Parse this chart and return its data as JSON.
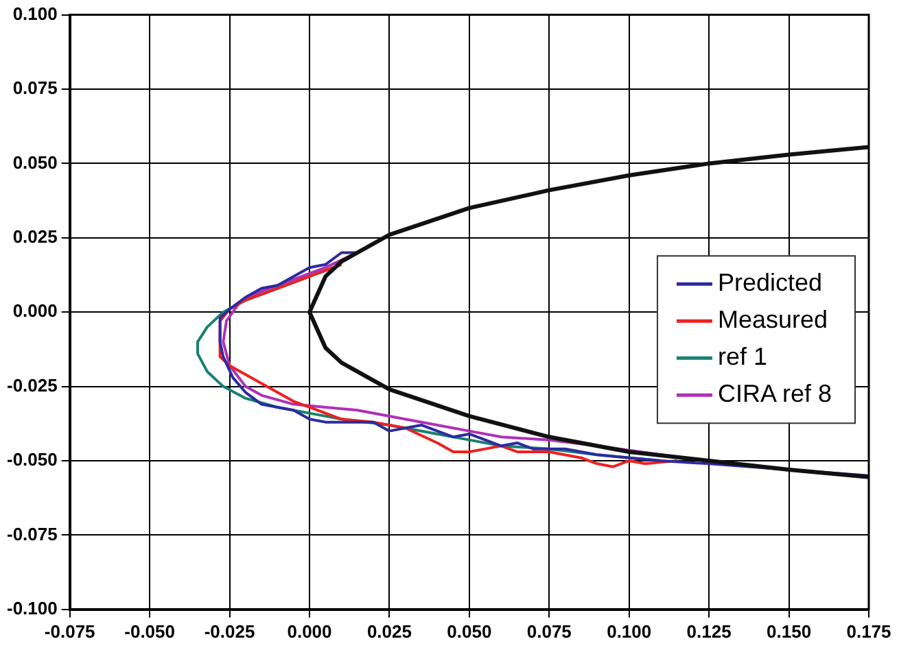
{
  "chart_data": {
    "type": "line",
    "xlim": [
      -0.075,
      0.175
    ],
    "ylim": [
      -0.1,
      0.1
    ],
    "xticks": [
      {
        "value": -0.075,
        "label": "-0.075"
      },
      {
        "value": -0.05,
        "label": "-0.050"
      },
      {
        "value": -0.025,
        "label": "-0.025"
      },
      {
        "value": 0,
        "label": "0.000"
      },
      {
        "value": 0.025,
        "label": "0.025"
      },
      {
        "value": 0.05,
        "label": "0.050"
      },
      {
        "value": 0.075,
        "label": "0.075"
      },
      {
        "value": 0.1,
        "label": "0.100"
      },
      {
        "value": 0.125,
        "label": "0.125"
      },
      {
        "value": 0.15,
        "label": "0.150"
      },
      {
        "value": 0.175,
        "label": "0.175"
      }
    ],
    "yticks": [
      {
        "value": -0.1,
        "label": "-0.100"
      },
      {
        "value": -0.075,
        "label": "-0.075"
      },
      {
        "value": -0.05,
        "label": "-0.050"
      },
      {
        "value": -0.025,
        "label": "-0.025"
      },
      {
        "value": 0,
        "label": "0.000"
      },
      {
        "value": 0.025,
        "label": "0.025"
      },
      {
        "value": 0.05,
        "label": "0.050"
      },
      {
        "value": 0.075,
        "label": "0.075"
      },
      {
        "value": 0.1,
        "label": "0.100"
      }
    ],
    "grid": true,
    "legend": "right",
    "marker": "none",
    "line_style": "solid",
    "series": [
      {
        "color": "#111111",
        "x": [
          0.175,
          0.15,
          0.125,
          0.1,
          0.075,
          0.05,
          0.025,
          0.01,
          0.005,
          0.0,
          0.005,
          0.01,
          0.025,
          0.05,
          0.075,
          0.1,
          0.125,
          0.15,
          0.175
        ],
        "values": [
          0.0555,
          0.053,
          0.05,
          0.046,
          0.041,
          0.035,
          0.026,
          0.017,
          0.012,
          0.0,
          -0.012,
          -0.017,
          -0.026,
          -0.035,
          -0.042,
          -0.047,
          -0.05,
          -0.053,
          -0.0555
        ]
      },
      {
        "name": "Predicted",
        "color": "#2b2ba0",
        "x": [
          0.015,
          0.01,
          0.005,
          0.0,
          -0.005,
          -0.01,
          -0.015,
          -0.02,
          -0.025,
          -0.028,
          -0.028,
          -0.027,
          -0.024,
          -0.02,
          -0.015,
          -0.01,
          -0.005,
          0.0,
          0.005,
          0.01,
          0.015,
          0.02,
          0.025,
          0.03,
          0.035,
          0.04,
          0.045,
          0.05,
          0.055,
          0.06,
          0.065,
          0.07,
          0.08,
          0.09,
          0.1,
          0.11,
          0.125,
          0.15,
          0.175
        ],
        "values": [
          0.02,
          0.02,
          0.016,
          0.015,
          0.012,
          0.009,
          0.008,
          0.005,
          0.001,
          -0.002,
          -0.01,
          -0.015,
          -0.022,
          -0.027,
          -0.031,
          -0.032,
          -0.033,
          -0.036,
          -0.037,
          -0.037,
          -0.037,
          -0.037,
          -0.04,
          -0.039,
          -0.038,
          -0.04,
          -0.042,
          -0.041,
          -0.043,
          -0.045,
          -0.044,
          -0.046,
          -0.046,
          -0.048,
          -0.049,
          -0.05,
          -0.051,
          -0.053,
          -0.055
        ]
      },
      {
        "name": "Measured",
        "color": "#ee2020",
        "x": [
          0.01,
          0.005,
          0.0,
          -0.01,
          -0.02,
          -0.025,
          -0.028,
          -0.028,
          -0.025,
          -0.015,
          -0.005,
          0.0,
          0.01,
          0.02,
          0.03,
          0.04,
          0.045,
          0.05,
          0.055,
          0.06,
          0.065,
          0.075,
          0.085,
          0.09,
          0.095,
          0.1,
          0.105,
          0.115
        ],
        "values": [
          0.016,
          0.014,
          0.012,
          0.008,
          0.004,
          0.001,
          -0.003,
          -0.015,
          -0.018,
          -0.024,
          -0.03,
          -0.032,
          -0.036,
          -0.037,
          -0.039,
          -0.044,
          -0.047,
          -0.047,
          -0.046,
          -0.045,
          -0.047,
          -0.047,
          -0.049,
          -0.051,
          -0.052,
          -0.05,
          -0.051,
          -0.05
        ]
      },
      {
        "name": "ref 1",
        "color": "#1a8070",
        "x": [
          0.01,
          0.0,
          -0.01,
          -0.02,
          -0.027,
          -0.032,
          -0.035,
          -0.035,
          -0.032,
          -0.027,
          -0.02,
          -0.01,
          0.0,
          0.01,
          0.025,
          0.04,
          0.05,
          0.06,
          0.075,
          0.09,
          0.11
        ],
        "values": [
          0.016,
          0.012,
          0.008,
          0.004,
          0.0,
          -0.005,
          -0.01,
          -0.014,
          -0.02,
          -0.025,
          -0.029,
          -0.032,
          -0.034,
          -0.036,
          -0.038,
          -0.041,
          -0.043,
          -0.045,
          -0.046,
          -0.048,
          -0.05
        ]
      },
      {
        "name": "CIRA ref 8",
        "color": "#b030b8",
        "x": [
          0.015,
          0.005,
          -0.005,
          -0.015,
          -0.022,
          -0.026,
          -0.027,
          -0.025,
          -0.02,
          -0.015,
          -0.005,
          0.005,
          0.015,
          0.025,
          0.04,
          0.05,
          0.06,
          0.075,
          0.09,
          0.11,
          0.125
        ],
        "values": [
          0.02,
          0.015,
          0.011,
          0.007,
          0.003,
          -0.003,
          -0.01,
          -0.018,
          -0.025,
          -0.028,
          -0.031,
          -0.032,
          -0.033,
          -0.035,
          -0.038,
          -0.04,
          -0.042,
          -0.043,
          -0.045,
          -0.048,
          -0.05
        ]
      }
    ]
  }
}
